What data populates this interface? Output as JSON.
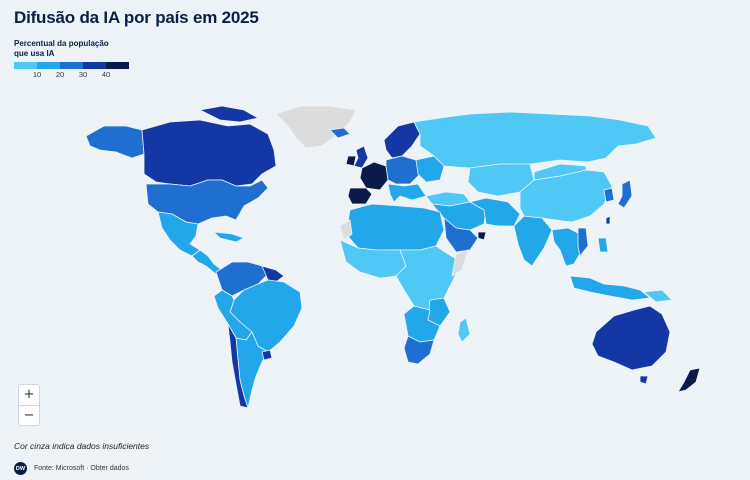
{
  "title": "Difusão da IA por país em 2025",
  "legend": {
    "title_line1": "Percentual da população",
    "title_line2": "que usa IA",
    "ticks": [
      "10",
      "20",
      "30",
      "40"
    ],
    "colors": [
      "#4fc8f5",
      "#22a7ea",
      "#1e6fd0",
      "#1437a6",
      "#0a1a4a"
    ]
  },
  "zoom": {
    "in_label": "+",
    "out_label": "−"
  },
  "footnote": "Cor cinza indica dados insuficientes",
  "source": {
    "logo_text": "DW",
    "text": "Fonte: Microsoft · Obter dados"
  },
  "colors": {
    "background": "#eef3f8",
    "no_data": "#dcdcdc",
    "bin1": "#4fc8f5",
    "bin2": "#22a7ea",
    "bin3": "#1e6fd0",
    "bin4": "#1437a6",
    "bin5": "#0a1a4a"
  }
}
